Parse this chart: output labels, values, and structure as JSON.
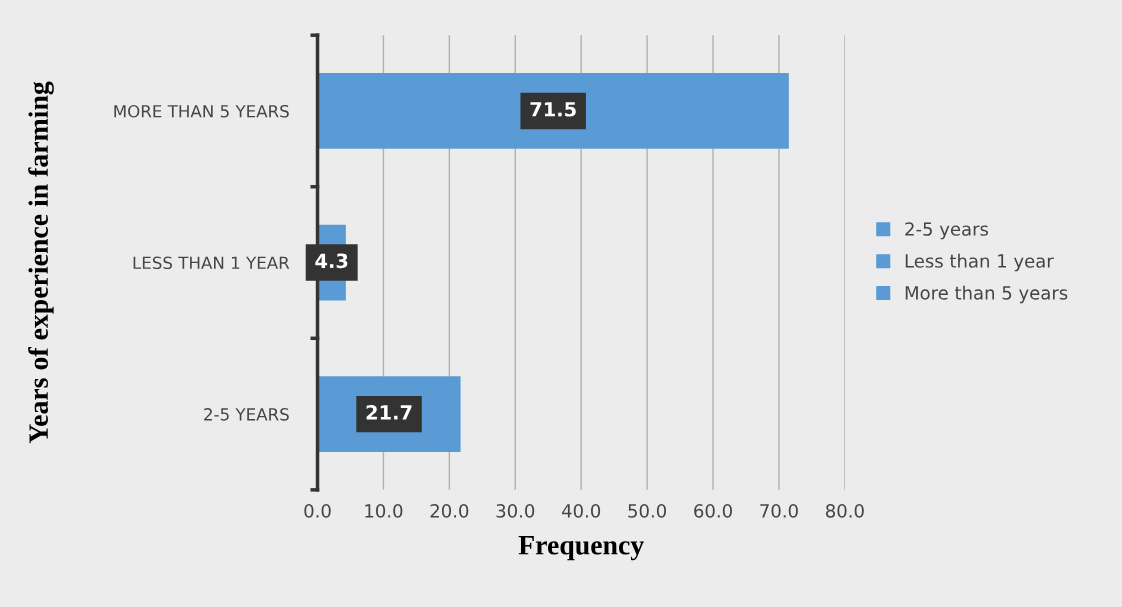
{
  "chart_data": {
    "type": "bar",
    "orientation": "horizontal",
    "categories": [
      "MORE THAN 5 YEARS",
      "LESS THAN 1 YEAR",
      "2-5 YEARS"
    ],
    "series": [
      {
        "name": "2-5 years",
        "color": "#5b9bd5",
        "values": [
          null,
          null,
          21.7
        ]
      },
      {
        "name": "Less than 1 year",
        "color": "#5b9bd5",
        "values": [
          null,
          4.3,
          null
        ]
      },
      {
        "name": "More than 5 years",
        "color": "#5b9bd5",
        "values": [
          71.5,
          null,
          null
        ]
      }
    ],
    "xlabel": "Frequency",
    "ylabel": "Years of experience in farming",
    "xlim": [
      0,
      80
    ],
    "xticks": [
      {
        "value": 0,
        "label": "0.0"
      },
      {
        "value": 10,
        "label": "10.0"
      },
      {
        "value": 20,
        "label": "20.0"
      },
      {
        "value": 30,
        "label": "30.0"
      },
      {
        "value": 40,
        "label": "40.0"
      },
      {
        "value": 50,
        "label": "50.0"
      },
      {
        "value": 60,
        "label": "60.0"
      },
      {
        "value": 70,
        "label": "70.0"
      },
      {
        "value": 80,
        "label": "80.0"
      }
    ],
    "grid": "x",
    "legend": "right",
    "data_labels": true
  }
}
